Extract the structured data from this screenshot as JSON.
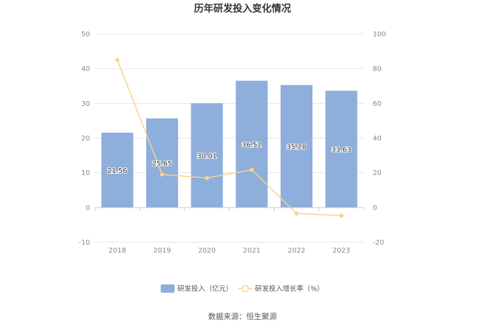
{
  "chart_data": {
    "type": "bar",
    "title": "历年研发投入变化情况",
    "categories": [
      "2018",
      "2019",
      "2020",
      "2021",
      "2022",
      "2023"
    ],
    "series": [
      {
        "name": "研发投入（亿元）",
        "type": "bar",
        "axis": "left",
        "color": "#8eaedb",
        "values": [
          21.56,
          25.65,
          30.01,
          36.52,
          35.28,
          33.63
        ],
        "labels": [
          "21.56",
          "25.65",
          "30.01",
          "36.52",
          "35.28",
          "33.63"
        ]
      },
      {
        "name": "研发投入增长率（%）",
        "type": "line",
        "axis": "right",
        "color": "#f9d48a",
        "values": [
          85,
          19,
          17,
          21.7,
          -3.4,
          -4.7
        ]
      }
    ],
    "y_left": {
      "min": -10,
      "max": 50,
      "ticks": [
        "-10",
        "0",
        "10",
        "20",
        "30",
        "40",
        "50"
      ]
    },
    "y_right": {
      "min": -20,
      "max": 100,
      "ticks": [
        "-20",
        "0",
        "20",
        "40",
        "60",
        "80",
        "100"
      ]
    },
    "grid": true,
    "legend_position": "bottom"
  },
  "footer": {
    "source": "数据来源：恒生聚源"
  }
}
